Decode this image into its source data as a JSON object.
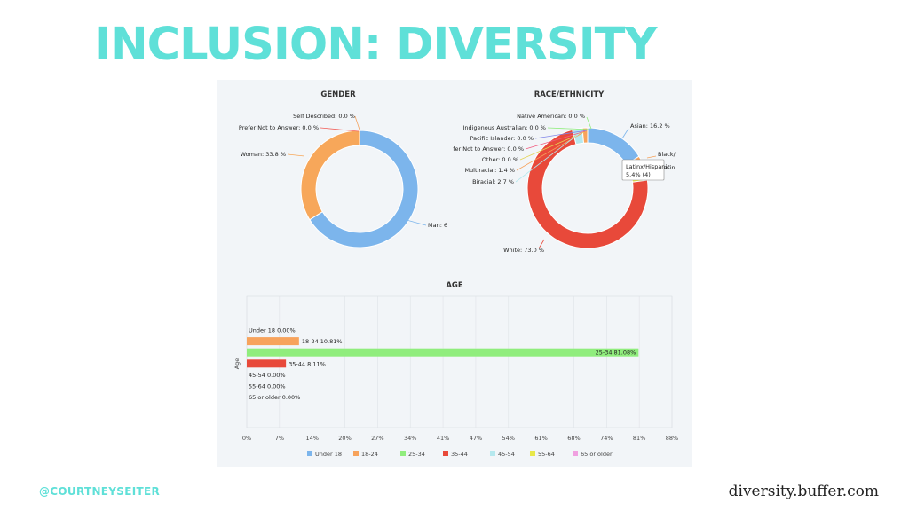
{
  "slide": {
    "title": "INCLUSION: DIVERSITY",
    "handle": "@COURTNEYSEITER",
    "site": "diversity.buffer.com",
    "title_color": "#5fe0d8"
  },
  "chart_data": [
    {
      "type": "pie",
      "title": "GENDER",
      "slices": [
        {
          "label": "Self Described: 0.0 %",
          "value": 0.0,
          "color": "#f4a460"
        },
        {
          "label": "Prefer Not to Answer: 0.0 %",
          "value": 0.0,
          "color": "#f2605a"
        },
        {
          "label": "Woman: 33.8 %",
          "value": 33.8,
          "color": "#f7a75a"
        },
        {
          "label": "Man: 6",
          "value": 66.2,
          "color": "#7cb5ec"
        }
      ]
    },
    {
      "type": "pie",
      "title": "RACE/ETHNICITY",
      "slices": [
        {
          "label": "Native American: 0.0 %",
          "value": 0.0,
          "color": "#90ed7d"
        },
        {
          "label": "Indigenous Australian: 0.0 %",
          "value": 0.0,
          "color": "#90ed7d"
        },
        {
          "label": "Pacific Islander: 0.0 %",
          "value": 0.0,
          "color": "#8085e9"
        },
        {
          "label": "fer Not to Answer: 0.0 %",
          "value": 0.0,
          "color": "#f15c80"
        },
        {
          "label": "Other: 0.0 %",
          "value": 0.0,
          "color": "#e4d354"
        },
        {
          "label": "Multiracial: 1.4 %",
          "value": 1.4,
          "color": "#f7a35c"
        },
        {
          "label": "Biracial: 2.7 %",
          "value": 2.7,
          "color": "#b5e8ee"
        },
        {
          "label": "Asian: 16.2 %",
          "value": 16.2,
          "color": "#7cb5ec"
        },
        {
          "label": "Black/",
          "value": 1.3,
          "color": "#f7a35c"
        },
        {
          "label": "Latinx/Hispanic",
          "value": 5.4,
          "color": "#e8e84a"
        },
        {
          "label": "White: 73.0 %",
          "value": 73.0,
          "color": "#e8493a"
        }
      ],
      "tooltip": {
        "title": "Latinx/Hispanic",
        "value": "5.4% (4)"
      }
    },
    {
      "type": "bar",
      "title": "AGE",
      "ylabel": "Age",
      "xlim": [
        0,
        88
      ],
      "x_ticks": [
        "0%",
        "7%",
        "14%",
        "20%",
        "27%",
        "34%",
        "41%",
        "47%",
        "54%",
        "61%",
        "68%",
        "74%",
        "81%",
        "88%"
      ],
      "categories": [
        "Under 18",
        "18-24",
        "25-34",
        "35-44",
        "45-54",
        "55-64",
        "65 or older"
      ],
      "values": [
        0.0,
        10.81,
        81.08,
        8.11,
        0.0,
        0.0,
        0.0
      ],
      "data_labels": [
        "Under 18 0.00%",
        "18-24 10.81%",
        "25-34 81.08%",
        "35-44 8.11%",
        "45-54 0.00%",
        "55-64 0.00%",
        "65 or older 0.00%"
      ],
      "colors": [
        "#7cb5ec",
        "#f7a35c",
        "#90ed7d",
        "#e8493a",
        "#b5e8ee",
        "#e8e84a",
        "#f0a0e0"
      ],
      "legend": [
        "Under 18",
        "18-24",
        "25-34",
        "35-44",
        "45-54",
        "55-64",
        "65 or older"
      ],
      "legend_placement": "bottom",
      "grid": true
    }
  ]
}
